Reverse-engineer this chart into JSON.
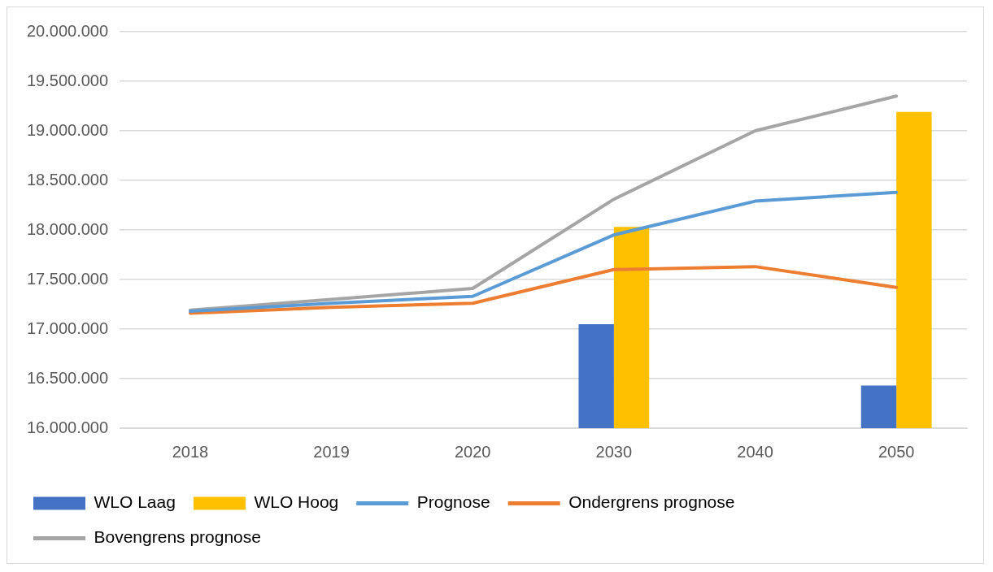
{
  "chart_data": {
    "type": "bar",
    "categories": [
      "2018",
      "2019",
      "2020",
      "2030",
      "2040",
      "2050"
    ],
    "series": [
      {
        "name": "WLO Laag",
        "type": "bar",
        "color": "#4472c4",
        "values": [
          null,
          null,
          null,
          17050000,
          null,
          16430000
        ]
      },
      {
        "name": "WLO Hoog",
        "type": "bar",
        "color": "#ffc000",
        "values": [
          null,
          null,
          null,
          18030000,
          null,
          19190000
        ]
      },
      {
        "name": "Prognose",
        "type": "line",
        "color": "#5b9bd5",
        "values": [
          17180000,
          17260000,
          17330000,
          17950000,
          18290000,
          18380000
        ]
      },
      {
        "name": "Ondergrens prognose",
        "type": "line",
        "color": "#ed7d31",
        "values": [
          17160000,
          17220000,
          17260000,
          17600000,
          17630000,
          17420000
        ]
      },
      {
        "name": "Bovengrens prognose",
        "type": "line",
        "color": "#a5a5a5",
        "values": [
          17190000,
          17300000,
          17410000,
          18310000,
          19000000,
          19350000
        ]
      }
    ],
    "ylim": [
      16000000,
      20000000
    ],
    "yticks": [
      {
        "value": 16000000,
        "label": "16.000.000"
      },
      {
        "value": 16500000,
        "label": "16.500.000"
      },
      {
        "value": 17000000,
        "label": "17.000.000"
      },
      {
        "value": 17500000,
        "label": "17.500.000"
      },
      {
        "value": 18000000,
        "label": "18.000.000"
      },
      {
        "value": 18500000,
        "label": "18.500.000"
      },
      {
        "value": 19000000,
        "label": "19.000.000"
      },
      {
        "value": 19500000,
        "label": "19.500.000"
      },
      {
        "value": 20000000,
        "label": "20.000.000"
      }
    ],
    "grid": "y",
    "legend": "bottom",
    "marker": "none"
  }
}
